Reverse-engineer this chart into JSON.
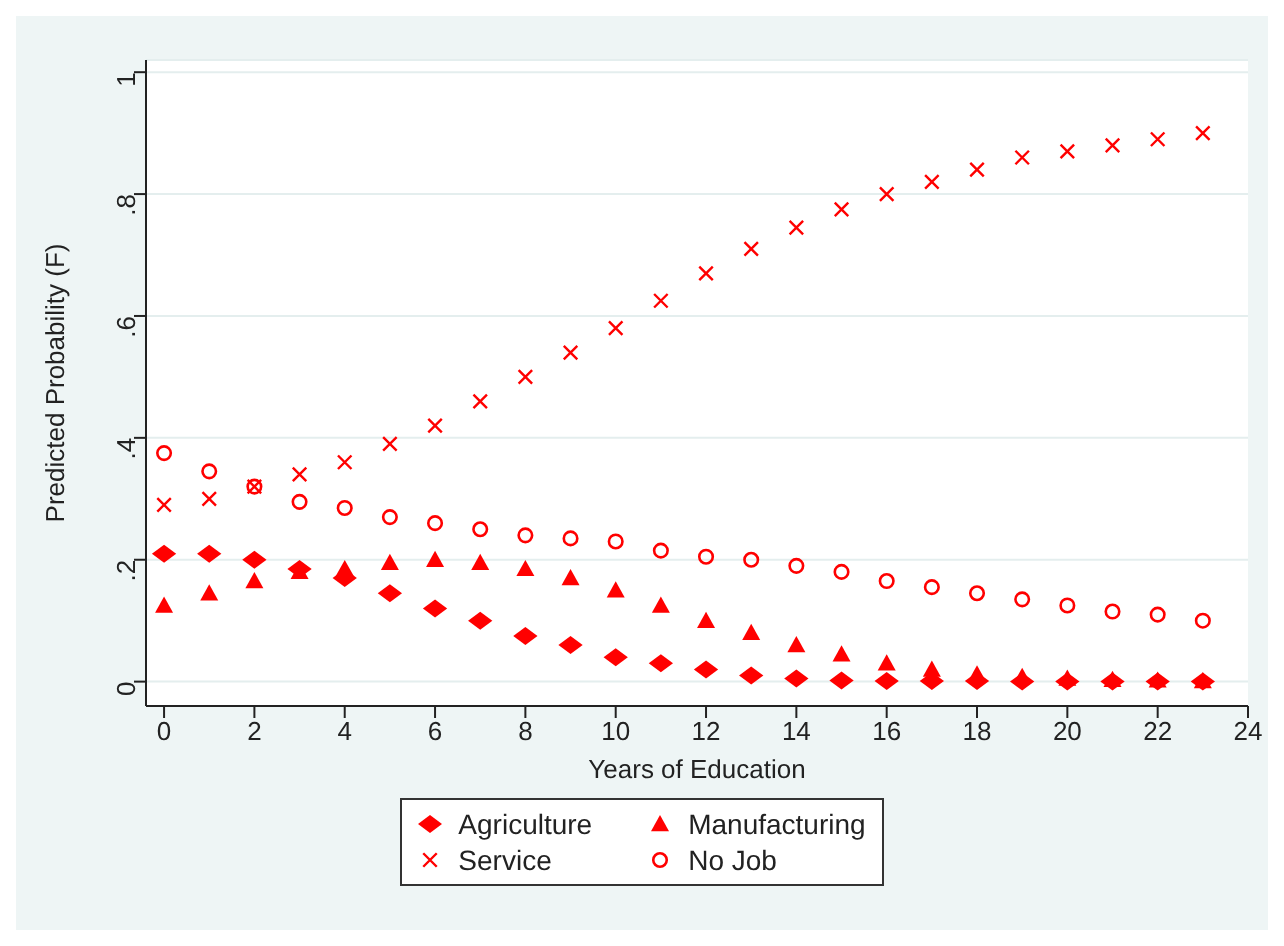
{
  "chart_data": {
    "type": "scatter",
    "xlabel": "Years of Education",
    "ylabel": "Predicted Probability (F)",
    "x": [
      0,
      1,
      2,
      3,
      4,
      5,
      6,
      7,
      8,
      9,
      10,
      11,
      12,
      13,
      14,
      15,
      16,
      17,
      18,
      19,
      20,
      21,
      22,
      23
    ],
    "xlim": [
      -0.4,
      24
    ],
    "xticks": [
      0,
      2,
      4,
      6,
      8,
      10,
      12,
      14,
      16,
      18,
      20,
      22,
      24
    ],
    "ylim": [
      -0.04,
      1.02
    ],
    "yticks": [
      {
        "value": 0,
        "label": "0"
      },
      {
        "value": 0.2,
        "label": ".2"
      },
      {
        "value": 0.4,
        "label": ".4"
      },
      {
        "value": 0.6,
        "label": ".6"
      },
      {
        "value": 0.8,
        "label": ".8"
      },
      {
        "value": 1,
        "label": "1"
      }
    ],
    "grid": "y",
    "legend": "bottom",
    "series": [
      {
        "name": "Agriculture",
        "color": "#ff0000",
        "marker": "diamond",
        "values": [
          0.21,
          0.21,
          0.2,
          0.185,
          0.17,
          0.145,
          0.12,
          0.1,
          0.075,
          0.06,
          0.04,
          0.03,
          0.02,
          0.01,
          0.005,
          0.002,
          0.001,
          0.001,
          0.001,
          0,
          0,
          0,
          0,
          0
        ]
      },
      {
        "name": "Manufacturing",
        "color": "#ff0000",
        "marker": "triangle",
        "values": [
          0.125,
          0.145,
          0.165,
          0.18,
          0.185,
          0.195,
          0.2,
          0.195,
          0.185,
          0.17,
          0.15,
          0.125,
          0.1,
          0.08,
          0.06,
          0.045,
          0.03,
          0.02,
          0.012,
          0.008,
          0.005,
          0.003,
          0.002,
          0.001
        ]
      },
      {
        "name": "Service",
        "color": "#ff0000",
        "marker": "cross",
        "values": [
          0.29,
          0.3,
          0.32,
          0.34,
          0.36,
          0.39,
          0.42,
          0.46,
          0.5,
          0.54,
          0.58,
          0.625,
          0.67,
          0.71,
          0.745,
          0.775,
          0.8,
          0.82,
          0.84,
          0.86,
          0.87,
          0.88,
          0.89,
          0.9
        ]
      },
      {
        "name": "No Job",
        "color": "#ff0000",
        "marker": "circle",
        "values": [
          0.375,
          0.345,
          0.32,
          0.295,
          0.285,
          0.27,
          0.26,
          0.25,
          0.24,
          0.235,
          0.23,
          0.215,
          0.205,
          0.2,
          0.19,
          0.18,
          0.165,
          0.155,
          0.145,
          0.135,
          0.125,
          0.115,
          0.11,
          0.1
        ]
      }
    ]
  }
}
